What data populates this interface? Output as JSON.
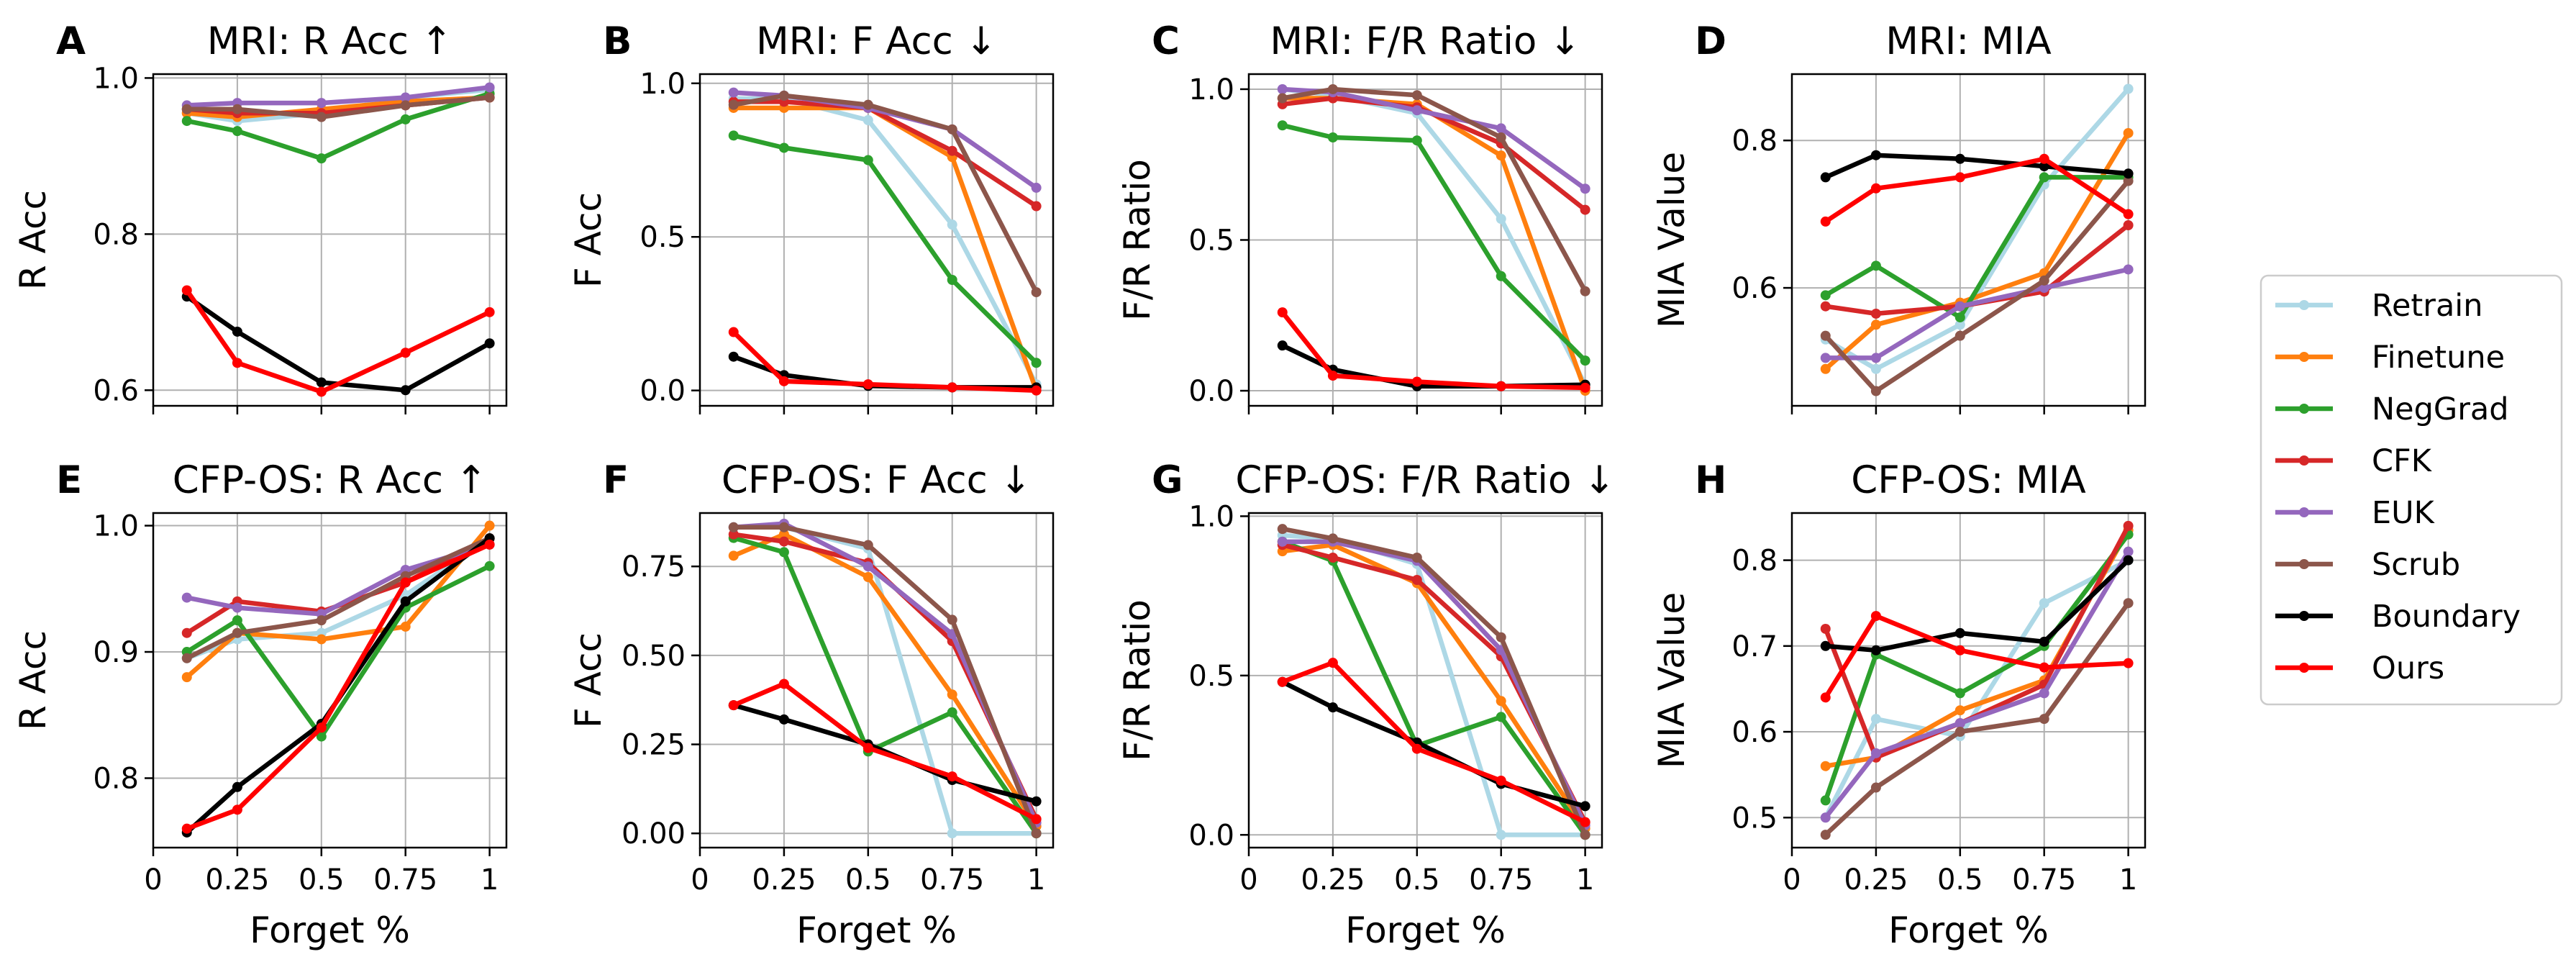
{
  "series_names": [
    "Retrain",
    "Finetune",
    "NegGrad",
    "CFK",
    "EUK",
    "Scrub",
    "Boundary",
    "Ours"
  ],
  "series_colors": [
    "#add8e6",
    "#ff7f0e",
    "#2ca02c",
    "#d62728",
    "#9467bd",
    "#8c564b",
    "#000000",
    "#ff0000"
  ],
  "chart_data": [
    {
      "type": "line",
      "label": "A",
      "title": "MRI: R Acc ↑",
      "xlabel": "",
      "ylabel": "R Acc",
      "x": [
        0.1,
        0.25,
        0.5,
        0.75,
        1.0
      ],
      "xlim": [
        0,
        1.05
      ],
      "ylim": [
        0.58,
        1.005
      ],
      "xticks": [],
      "yticks": [
        0.6,
        0.8,
        1.0
      ],
      "ytick_labels": [
        "0.6",
        "0.8",
        "1.0"
      ],
      "grid": true,
      "series": [
        {
          "name": "Retrain",
          "values": [
            0.955,
            0.945,
            0.955,
            0.975,
            0.985
          ]
        },
        {
          "name": "Finetune",
          "values": [
            0.955,
            0.95,
            0.96,
            0.97,
            0.975
          ]
        },
        {
          "name": "NegGrad",
          "values": [
            0.945,
            0.932,
            0.897,
            0.947,
            0.98
          ]
        },
        {
          "name": "CFK",
          "values": [
            0.96,
            0.955,
            0.955,
            0.965,
            0.975
          ]
        },
        {
          "name": "EUK",
          "values": [
            0.965,
            0.968,
            0.968,
            0.975,
            0.988
          ]
        },
        {
          "name": "Scrub",
          "values": [
            0.96,
            0.96,
            0.95,
            0.965,
            0.975
          ]
        },
        {
          "name": "Boundary",
          "values": [
            0.72,
            0.675,
            0.61,
            0.6,
            0.66
          ]
        },
        {
          "name": "Ours",
          "values": [
            0.728,
            0.635,
            0.598,
            0.648,
            0.7
          ]
        }
      ]
    },
    {
      "type": "line",
      "label": "B",
      "title": "MRI: F Acc ↓",
      "xlabel": "",
      "ylabel": "F Acc",
      "x": [
        0.1,
        0.25,
        0.5,
        0.75,
        1.0
      ],
      "xlim": [
        0,
        1.05
      ],
      "ylim": [
        -0.05,
        1.03
      ],
      "xticks": [],
      "yticks": [
        0.0,
        0.5,
        1.0
      ],
      "ytick_labels": [
        "0.0",
        "0.5",
        "1.0"
      ],
      "grid": true,
      "series": [
        {
          "name": "Retrain",
          "values": [
            0.95,
            0.95,
            0.88,
            0.54,
            0.02
          ]
        },
        {
          "name": "Finetune",
          "values": [
            0.92,
            0.92,
            0.92,
            0.76,
            0.0
          ]
        },
        {
          "name": "NegGrad",
          "values": [
            0.83,
            0.79,
            0.75,
            0.36,
            0.09
          ]
        },
        {
          "name": "CFK",
          "values": [
            0.94,
            0.94,
            0.92,
            0.78,
            0.6
          ]
        },
        {
          "name": "EUK",
          "values": [
            0.97,
            0.96,
            0.92,
            0.85,
            0.66
          ]
        },
        {
          "name": "Scrub",
          "values": [
            0.93,
            0.96,
            0.93,
            0.85,
            0.32
          ]
        },
        {
          "name": "Boundary",
          "values": [
            0.11,
            0.05,
            0.015,
            0.01,
            0.01
          ]
        },
        {
          "name": "Ours",
          "values": [
            0.19,
            0.03,
            0.02,
            0.01,
            0.0
          ]
        }
      ]
    },
    {
      "type": "line",
      "label": "C",
      "title": "MRI: F/R Ratio ↓",
      "xlabel": "",
      "ylabel": "F/R Ratio",
      "x": [
        0.1,
        0.25,
        0.5,
        0.75,
        1.0
      ],
      "xlim": [
        0,
        1.05
      ],
      "ylim": [
        -0.05,
        1.05
      ],
      "xticks": [],
      "yticks": [
        0.0,
        0.5,
        1.0
      ],
      "ytick_labels": [
        "0.0",
        "0.5",
        "1.0"
      ],
      "grid": true,
      "series": [
        {
          "name": "Retrain",
          "values": [
            1.0,
            0.98,
            0.92,
            0.57,
            0.02
          ]
        },
        {
          "name": "Finetune",
          "values": [
            0.97,
            0.97,
            0.95,
            0.78,
            0.0
          ]
        },
        {
          "name": "NegGrad",
          "values": [
            0.88,
            0.84,
            0.83,
            0.38,
            0.1
          ]
        },
        {
          "name": "CFK",
          "values": [
            0.95,
            0.97,
            0.94,
            0.82,
            0.6
          ]
        },
        {
          "name": "EUK",
          "values": [
            1.0,
            0.99,
            0.93,
            0.87,
            0.67
          ]
        },
        {
          "name": "Scrub",
          "values": [
            0.97,
            1.0,
            0.98,
            0.84,
            0.33
          ]
        },
        {
          "name": "Boundary",
          "values": [
            0.15,
            0.07,
            0.015,
            0.015,
            0.02
          ]
        },
        {
          "name": "Ours",
          "values": [
            0.26,
            0.05,
            0.03,
            0.015,
            0.01
          ]
        }
      ]
    },
    {
      "type": "line",
      "label": "D",
      "title": "MRI: MIA",
      "xlabel": "",
      "ylabel": "MIA Value",
      "x": [
        0.1,
        0.25,
        0.5,
        0.75,
        1.0
      ],
      "xlim": [
        0,
        1.05
      ],
      "ylim": [
        0.44,
        0.89
      ],
      "xticks": [],
      "yticks": [
        0.6,
        0.8
      ],
      "ytick_labels": [
        "0.6",
        "0.8"
      ],
      "grid": true,
      "series": [
        {
          "name": "Retrain",
          "values": [
            0.53,
            0.49,
            0.55,
            0.74,
            0.87
          ]
        },
        {
          "name": "Finetune",
          "values": [
            0.49,
            0.55,
            0.58,
            0.62,
            0.81
          ]
        },
        {
          "name": "NegGrad",
          "values": [
            0.59,
            0.63,
            0.56,
            0.75,
            0.75
          ]
        },
        {
          "name": "CFK",
          "values": [
            0.575,
            0.565,
            0.575,
            0.595,
            0.685
          ]
        },
        {
          "name": "EUK",
          "values": [
            0.505,
            0.505,
            0.575,
            0.6,
            0.625
          ]
        },
        {
          "name": "Scrub",
          "values": [
            0.535,
            0.46,
            0.535,
            0.61,
            0.745
          ]
        },
        {
          "name": "Boundary",
          "values": [
            0.75,
            0.78,
            0.775,
            0.765,
            0.755
          ]
        },
        {
          "name": "Ours",
          "values": [
            0.69,
            0.735,
            0.75,
            0.775,
            0.7
          ]
        }
      ]
    },
    {
      "type": "line",
      "label": "E",
      "title": "CFP-OS: R Acc ↑",
      "xlabel": "Forget %",
      "ylabel": "R Acc",
      "x": [
        0.1,
        0.25,
        0.5,
        0.75,
        1.0
      ],
      "xlim": [
        0,
        1.05
      ],
      "ylim": [
        0.745,
        1.01
      ],
      "xticks": [
        0,
        0.25,
        0.5,
        0.75,
        1.0
      ],
      "xtick_labels": [
        "0",
        "0.25",
        "0.5",
        "0.75",
        "1"
      ],
      "yticks": [
        0.8,
        0.9,
        1.0
      ],
      "ytick_labels": [
        "0.8",
        "0.9",
        "1.0"
      ],
      "grid": true,
      "series": [
        {
          "name": "Retrain",
          "values": [
            0.895,
            0.91,
            0.915,
            0.945,
            0.99
          ]
        },
        {
          "name": "Finetune",
          "values": [
            0.88,
            0.915,
            0.91,
            0.92,
            1.0
          ]
        },
        {
          "name": "NegGrad",
          "values": [
            0.9,
            0.925,
            0.833,
            0.935,
            0.968
          ]
        },
        {
          "name": "CFK",
          "values": [
            0.915,
            0.94,
            0.932,
            0.955,
            0.99
          ]
        },
        {
          "name": "EUK",
          "values": [
            0.943,
            0.935,
            0.93,
            0.965,
            0.985
          ]
        },
        {
          "name": "Scrub",
          "values": [
            0.895,
            0.915,
            0.925,
            0.96,
            0.99
          ]
        },
        {
          "name": "Boundary",
          "values": [
            0.757,
            0.793,
            0.843,
            0.94,
            0.99
          ]
        },
        {
          "name": "Ours",
          "values": [
            0.76,
            0.775,
            0.84,
            0.955,
            0.985
          ]
        }
      ]
    },
    {
      "type": "line",
      "label": "F",
      "title": "CFP-OS: F Acc ↓",
      "xlabel": "Forget %",
      "ylabel": "F Acc",
      "x": [
        0.1,
        0.25,
        0.5,
        0.75,
        1.0
      ],
      "xlim": [
        0,
        1.05
      ],
      "ylim": [
        -0.04,
        0.9
      ],
      "xticks": [
        0,
        0.25,
        0.5,
        0.75,
        1.0
      ],
      "xtick_labels": [
        "0",
        "0.25",
        "0.5",
        "0.75",
        "1"
      ],
      "yticks": [
        0.0,
        0.25,
        0.5,
        0.75
      ],
      "ytick_labels": [
        "0.00",
        "0.25",
        "0.50",
        "0.75"
      ],
      "grid": true,
      "series": [
        {
          "name": "Retrain",
          "values": [
            0.86,
            0.86,
            0.8,
            0.0,
            0.0
          ]
        },
        {
          "name": "Finetune",
          "values": [
            0.78,
            0.84,
            0.72,
            0.39,
            0.02
          ]
        },
        {
          "name": "NegGrad",
          "values": [
            0.83,
            0.79,
            0.23,
            0.34,
            0.0
          ]
        },
        {
          "name": "CFK",
          "values": [
            0.84,
            0.82,
            0.76,
            0.54,
            0.04
          ]
        },
        {
          "name": "EUK",
          "values": [
            0.86,
            0.87,
            0.75,
            0.56,
            0.03
          ]
        },
        {
          "name": "Scrub",
          "values": [
            0.86,
            0.86,
            0.81,
            0.6,
            0.0
          ]
        },
        {
          "name": "Boundary",
          "values": [
            0.36,
            0.32,
            0.25,
            0.15,
            0.09
          ]
        },
        {
          "name": "Ours",
          "values": [
            0.36,
            0.42,
            0.24,
            0.16,
            0.04
          ]
        }
      ]
    },
    {
      "type": "line",
      "label": "G",
      "title": "CFP-OS: F/R Ratio ↓",
      "xlabel": "Forget %",
      "ylabel": "F/R Ratio",
      "x": [
        0.1,
        0.25,
        0.5,
        0.75,
        1.0
      ],
      "xlim": [
        0,
        1.05
      ],
      "ylim": [
        -0.04,
        1.01
      ],
      "xticks": [
        0,
        0.25,
        0.5,
        0.75,
        1.0
      ],
      "xtick_labels": [
        "0",
        "0.25",
        "0.5",
        "0.75",
        "1"
      ],
      "yticks": [
        0.0,
        0.5,
        1.0
      ],
      "ytick_labels": [
        "0.0",
        "0.5",
        "1.0"
      ],
      "grid": true,
      "series": [
        {
          "name": "Retrain",
          "values": [
            0.94,
            0.93,
            0.85,
            0.0,
            0.0
          ]
        },
        {
          "name": "Finetune",
          "values": [
            0.89,
            0.91,
            0.79,
            0.42,
            0.02
          ]
        },
        {
          "name": "NegGrad",
          "values": [
            0.92,
            0.86,
            0.28,
            0.37,
            0.0
          ]
        },
        {
          "name": "CFK",
          "values": [
            0.91,
            0.87,
            0.8,
            0.56,
            0.04
          ]
        },
        {
          "name": "EUK",
          "values": [
            0.92,
            0.92,
            0.86,
            0.58,
            0.03
          ]
        },
        {
          "name": "Scrub",
          "values": [
            0.96,
            0.93,
            0.87,
            0.62,
            0.0
          ]
        },
        {
          "name": "Boundary",
          "values": [
            0.48,
            0.4,
            0.29,
            0.16,
            0.09
          ]
        },
        {
          "name": "Ours",
          "values": [
            0.48,
            0.54,
            0.27,
            0.17,
            0.04
          ]
        }
      ]
    },
    {
      "type": "line",
      "label": "H",
      "title": "CFP-OS: MIA",
      "xlabel": "Forget %",
      "ylabel": "MIA Value",
      "x": [
        0.1,
        0.25,
        0.5,
        0.75,
        1.0
      ],
      "xlim": [
        0,
        1.05
      ],
      "ylim": [
        0.465,
        0.855
      ],
      "xticks": [
        0,
        0.25,
        0.5,
        0.75,
        1.0
      ],
      "xtick_labels": [
        "0",
        "0.25",
        "0.5",
        "0.75",
        "1"
      ],
      "yticks": [
        0.5,
        0.6,
        0.7,
        0.8
      ],
      "ytick_labels": [
        "0.5",
        "0.6",
        "0.7",
        "0.8"
      ],
      "grid": true,
      "series": [
        {
          "name": "Retrain",
          "values": [
            0.5,
            0.615,
            0.595,
            0.75,
            0.8
          ]
        },
        {
          "name": "Finetune",
          "values": [
            0.56,
            0.57,
            0.625,
            0.66,
            0.835
          ]
        },
        {
          "name": "NegGrad",
          "values": [
            0.52,
            0.69,
            0.645,
            0.7,
            0.83
          ]
        },
        {
          "name": "CFK",
          "values": [
            0.72,
            0.57,
            0.61,
            0.655,
            0.84
          ]
        },
        {
          "name": "EUK",
          "values": [
            0.5,
            0.575,
            0.61,
            0.645,
            0.81
          ]
        },
        {
          "name": "Scrub",
          "values": [
            0.48,
            0.535,
            0.6,
            0.615,
            0.75
          ]
        },
        {
          "name": "Boundary",
          "values": [
            0.7,
            0.695,
            0.715,
            0.705,
            0.8
          ]
        },
        {
          "name": "Ours",
          "values": [
            0.64,
            0.735,
            0.695,
            0.675,
            0.68
          ]
        }
      ]
    }
  ]
}
